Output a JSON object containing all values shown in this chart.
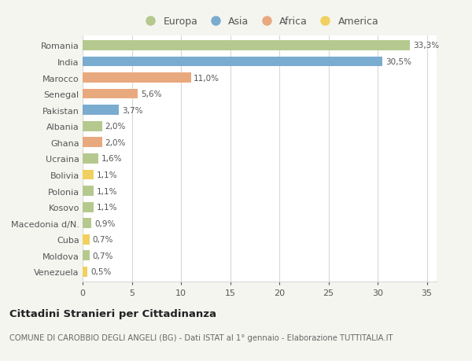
{
  "countries": [
    "Romania",
    "India",
    "Marocco",
    "Senegal",
    "Pakistan",
    "Albania",
    "Ghana",
    "Ucraina",
    "Bolivia",
    "Polonia",
    "Kosovo",
    "Macedonia d/N.",
    "Cuba",
    "Moldova",
    "Venezuela"
  ],
  "values": [
    33.3,
    30.5,
    11.0,
    5.6,
    3.7,
    2.0,
    2.0,
    1.6,
    1.1,
    1.1,
    1.1,
    0.9,
    0.7,
    0.7,
    0.5
  ],
  "labels": [
    "33,3%",
    "30,5%",
    "11,0%",
    "5,6%",
    "3,7%",
    "2,0%",
    "2,0%",
    "1,6%",
    "1,1%",
    "1,1%",
    "1,1%",
    "0,9%",
    "0,7%",
    "0,7%",
    "0,5%"
  ],
  "continents": [
    "Europa",
    "Asia",
    "Africa",
    "Africa",
    "Asia",
    "Europa",
    "Africa",
    "Europa",
    "America",
    "Europa",
    "Europa",
    "Europa",
    "America",
    "Europa",
    "America"
  ],
  "colors": {
    "Europa": "#b5c98e",
    "Asia": "#7aaccf",
    "Africa": "#e8a97e",
    "America": "#f0d060"
  },
  "xlim": [
    0,
    36
  ],
  "xticks": [
    0,
    5,
    10,
    15,
    20,
    25,
    30,
    35
  ],
  "background_color": "#f5f5f0",
  "plot_bg_color": "#ffffff",
  "grid_color": "#d8d8d8",
  "title": "Cittadini Stranieri per Cittadinanza",
  "subtitle": "COMUNE DI CAROBBIO DEGLI ANGELI (BG) - Dati ISTAT al 1° gennaio - Elaborazione TUTTITALIA.IT",
  "bar_height": 0.62,
  "text_color": "#555555",
  "label_fontsize": 7.5,
  "ytick_fontsize": 8.0,
  "xtick_fontsize": 8.0,
  "legend_order": [
    "Europa",
    "Asia",
    "Africa",
    "America"
  ]
}
